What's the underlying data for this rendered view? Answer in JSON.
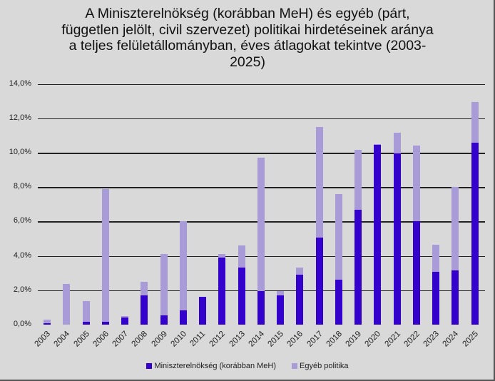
{
  "chart_data": {
    "type": "bar",
    "stacked": true,
    "title": "A Miniszterelnökség (korábban MeH) és egyéb (párt, független jelölt, civil szervezet) politikai hirdetéseinek  aránya a teljes felületállományban, éves átlagokat tekintve (2003-2025)",
    "title_lines": [
      "A Miniszterelnökség (korábban MeH) és egyéb (párt,",
      "független jelölt, civil szervezet) politikai hirdetéseinek  aránya",
      "a teljes felületállományban, éves átlagokat tekintve (2003-",
      "2025)"
    ],
    "xlabel": "",
    "ylabel": "",
    "ylim": [
      0,
      14
    ],
    "yticks": [
      "0,0%",
      "2,0%",
      "4,0%",
      "6,0%",
      "8,0%",
      "10,0%",
      "12,0%",
      "14,0%"
    ],
    "grid": true,
    "legend_position": "bottom",
    "categories": [
      "2003",
      "2004",
      "2005",
      "2006",
      "2007",
      "2008",
      "2009",
      "2010",
      "2011",
      "2012",
      "2013",
      "2014",
      "2015",
      "2016",
      "2017",
      "2018",
      "2019",
      "2020",
      "2021",
      "2022",
      "2023",
      "2024",
      "2025"
    ],
    "series": [
      {
        "name": "Miniszterelnökség (korábban MeH)",
        "color": "#3300cc",
        "values": [
          0.1,
          0.0,
          0.15,
          0.15,
          0.4,
          1.7,
          0.55,
          0.85,
          1.6,
          3.9,
          3.3,
          1.95,
          1.7,
          2.9,
          5.05,
          2.6,
          6.7,
          10.45,
          9.95,
          6.0,
          3.05,
          3.15,
          10.6
        ]
      },
      {
        "name": "Egyéb politika",
        "color": "#a99bd8",
        "values": [
          0.2,
          2.35,
          1.2,
          7.75,
          0.1,
          0.8,
          3.55,
          5.15,
          0.0,
          0.2,
          1.3,
          7.75,
          0.25,
          0.4,
          6.45,
          5.0,
          3.45,
          0.05,
          1.2,
          4.4,
          1.6,
          4.85,
          2.35
        ]
      }
    ]
  }
}
